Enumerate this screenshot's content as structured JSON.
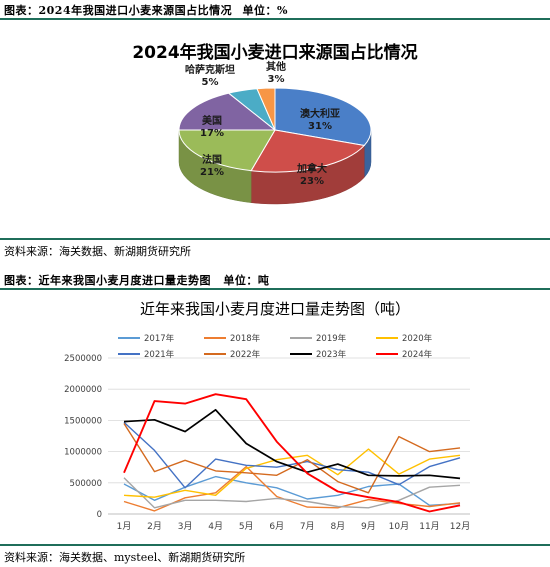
{
  "figure1": {
    "caption_label": "图表：",
    "caption_title": "2024年我国进口小麦来源国占比情况",
    "caption_unit_label": "单位：",
    "caption_unit": "%",
    "source": "资料来源：海关数据、新湖期货研究所"
  },
  "figure2": {
    "caption_label": "图表：",
    "caption_title": "近年来我国小麦月度进口量走势图",
    "caption_unit_label": "单位：",
    "caption_unit": "吨",
    "source": "资料来源：海关数据、mysteel、新湖期货研究所"
  },
  "chart_data": [
    {
      "type": "pie",
      "title": "2024年我国小麦进口来源国占比情况",
      "slices": [
        {
          "label": "澳大利亚",
          "value": 31,
          "value_label": "31%",
          "color": "#4a7fc8"
        },
        {
          "label": "加拿大",
          "value": 23,
          "value_label": "23%",
          "color": "#cf4e4a"
        },
        {
          "label": "法国",
          "value": 21,
          "value_label": "21%",
          "color": "#9bbb59"
        },
        {
          "label": "美国",
          "value": 17,
          "value_label": "17%",
          "color": "#8064a2"
        },
        {
          "label": "哈萨克斯坦",
          "value": 5,
          "value_label": "5%",
          "color": "#4bacc6"
        },
        {
          "label": "其他",
          "value": 3,
          "value_label": "3%",
          "color": "#f79646"
        }
      ]
    },
    {
      "type": "line",
      "title": "近年来我国小麦月度进口量走势图（吨）",
      "categories": [
        "1月",
        "2月",
        "3月",
        "4月",
        "5月",
        "6月",
        "7月",
        "8月",
        "9月",
        "10月",
        "11月",
        "12月"
      ],
      "ylim": [
        0,
        2500000
      ],
      "yticks": [
        "0",
        "500000",
        "1000000",
        "1500000",
        "2000000",
        "2500000"
      ],
      "grid": true,
      "legend_position": "top",
      "series": [
        {
          "name": "2017年",
          "color": "#5b9bd5",
          "width": 1.4,
          "values": [
            480000,
            220000,
            430000,
            600000,
            500000,
            420000,
            240000,
            300000,
            440000,
            480000,
            140000,
            170000
          ]
        },
        {
          "name": "2018年",
          "color": "#ed7d31",
          "width": 1.4,
          "values": [
            200000,
            50000,
            260000,
            340000,
            760000,
            280000,
            110000,
            100000,
            230000,
            170000,
            120000,
            180000
          ]
        },
        {
          "name": "2019年",
          "color": "#a5a5a5",
          "width": 1.4,
          "values": [
            580000,
            100000,
            220000,
            220000,
            200000,
            250000,
            200000,
            120000,
            100000,
            220000,
            430000,
            460000
          ]
        },
        {
          "name": "2020年",
          "color": "#ffc000",
          "width": 1.4,
          "values": [
            300000,
            270000,
            380000,
            300000,
            730000,
            870000,
            940000,
            630000,
            1040000,
            640000,
            880000,
            940000
          ]
        },
        {
          "name": "2021年",
          "color": "#4472c4",
          "width": 1.4,
          "values": [
            1470000,
            1020000,
            420000,
            880000,
            780000,
            750000,
            840000,
            710000,
            670000,
            470000,
            760000,
            900000
          ]
        },
        {
          "name": "2022年",
          "color": "#d46a1f",
          "width": 1.4,
          "values": [
            1450000,
            680000,
            860000,
            690000,
            660000,
            620000,
            870000,
            520000,
            340000,
            1240000,
            1000000,
            1060000
          ]
        },
        {
          "name": "2023年",
          "color": "#000000",
          "width": 1.7,
          "values": [
            1480000,
            1510000,
            1320000,
            1670000,
            1130000,
            840000,
            670000,
            800000,
            620000,
            610000,
            620000,
            570000
          ]
        },
        {
          "name": "2024年",
          "color": "#ff0000",
          "width": 1.9,
          "values": [
            660000,
            1810000,
            1770000,
            1920000,
            1840000,
            1160000,
            650000,
            360000,
            270000,
            190000,
            40000,
            140000
          ]
        }
      ]
    }
  ]
}
